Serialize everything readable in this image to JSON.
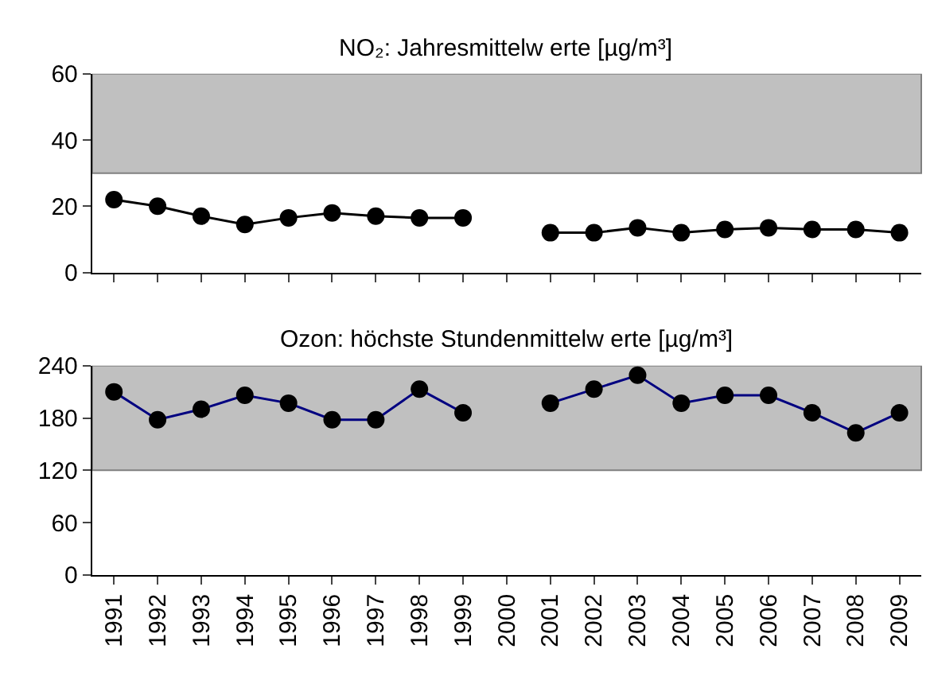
{
  "chart_data": [
    {
      "type": "line",
      "title": "NO₂: Jahresmittelw erte [µg/m³]",
      "categories": [
        "1991",
        "1992",
        "1993",
        "1994",
        "1995",
        "1996",
        "1997",
        "1998",
        "1999",
        "2000",
        "2001",
        "2002",
        "2003",
        "2004",
        "2005",
        "2006",
        "2007",
        "2008",
        "2009"
      ],
      "series": [
        {
          "color": "#000000",
          "values": [
            22,
            20,
            17,
            14.5,
            16.5,
            18,
            17,
            16.5,
            16.5,
            null,
            12,
            12,
            13.5,
            12,
            13,
            13.5,
            13,
            13,
            12
          ]
        }
      ],
      "ylim": [
        0,
        60
      ],
      "yticks": [
        0,
        20,
        40,
        60
      ],
      "bands": [
        {
          "axis": "y",
          "from": 30,
          "to": 60,
          "color": "#c0c0c0"
        }
      ],
      "marker": "circle",
      "line_style": "solid",
      "grid": false,
      "tick_labels": "y"
    },
    {
      "type": "line",
      "title": "Ozon: höchste Stundenmittelw erte [µg/m³]",
      "categories": [
        "1991",
        "1992",
        "1993",
        "1994",
        "1995",
        "1996",
        "1997",
        "1998",
        "1999",
        "2000",
        "2001",
        "2002",
        "2003",
        "2004",
        "2005",
        "2006",
        "2007",
        "2008",
        "2009"
      ],
      "series": [
        {
          "color": "#000080",
          "values": [
            210,
            178,
            190,
            206,
            197,
            178,
            178,
            213,
            186,
            null,
            197,
            213,
            229,
            197,
            206,
            206,
            186,
            163,
            186
          ]
        }
      ],
      "ylim": [
        0,
        240
      ],
      "yticks": [
        0,
        60,
        120,
        180,
        240
      ],
      "bands": [
        {
          "axis": "y",
          "from": 120,
          "to": 240,
          "color": "#c0c0c0"
        }
      ],
      "marker": "circle",
      "line_style": "solid",
      "grid": false
    }
  ]
}
